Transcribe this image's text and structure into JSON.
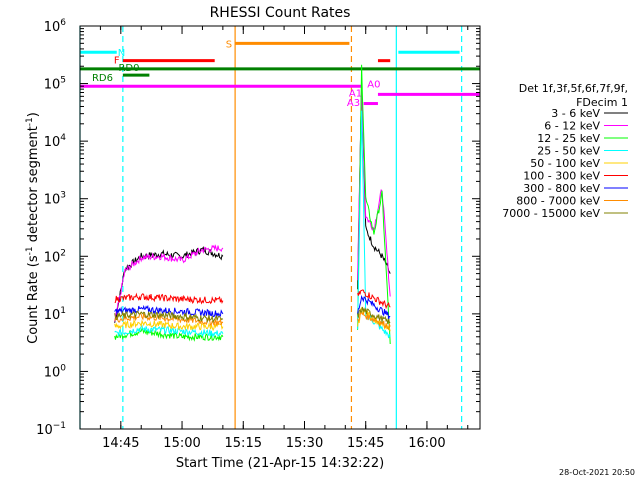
{
  "chart_data": {
    "type": "line",
    "title": "RHESSI Count Rates",
    "xlabel": "Start Time (21-Apr-15 14:32:22)",
    "ylabel_main": "Count Rate (s",
    "ylabel_sup1": "-1",
    "ylabel_mid": " detector segment",
    "ylabel_sup2": "-1",
    "ylabel_end": ")",
    "yscale": "log",
    "ylim": [
      0.1,
      1000000
    ],
    "xlim": [
      "14:35:00",
      "16:13:00"
    ],
    "xticks": [
      "14:45",
      "15:00",
      "15:15",
      "15:30",
      "15:45",
      "16:00"
    ],
    "yticks": [
      {
        "value": 0.1,
        "base": "10",
        "exp": "−1"
      },
      {
        "value": 1,
        "base": "10",
        "exp": "0"
      },
      {
        "value": 10,
        "base": "10",
        "exp": "1"
      },
      {
        "value": 100,
        "base": "10",
        "exp": "2"
      },
      {
        "value": 1000,
        "base": "10",
        "exp": "3"
      },
      {
        "value": 10000,
        "base": "10",
        "exp": "4"
      },
      {
        "value": 100000,
        "base": "10",
        "exp": "5"
      },
      {
        "value": 1000000,
        "base": "10",
        "exp": "6"
      }
    ],
    "legend_title": [
      "Det 1f,3f,5f,6f,7f,9f,",
      "FDecim 1"
    ],
    "legend_placement": "right",
    "series": [
      {
        "name": "3 - 6 keV",
        "color": "#000000",
        "segments": [
          {
            "x": [
              "14:43:30",
              "14:46:00",
              "14:50:00",
              "14:55:00",
              "15:00:00",
              "15:05:00",
              "15:10:00"
            ],
            "y": [
              7,
              60,
              100,
              110,
              100,
              130,
              100
            ]
          },
          {
            "x": [
              "15:43:00",
              "15:44:00",
              "15:45:00",
              "15:47:00",
              "15:49:00",
              "15:51:00"
            ],
            "y": [
              30,
              100000,
              300,
              150,
              100,
              50
            ]
          }
        ]
      },
      {
        "name": "6 - 12 keV",
        "color": "#ff00ff",
        "segments": [
          {
            "x": [
              "14:43:30",
              "14:46:00",
              "14:50:00",
              "14:55:00",
              "15:00:00",
              "15:05:00",
              "15:10:00"
            ],
            "y": [
              7,
              55,
              95,
              100,
              85,
              130,
              140
            ]
          },
          {
            "x": [
              "15:43:00",
              "15:44:00",
              "15:45:00",
              "15:47:00",
              "15:49:00",
              "15:51:00"
            ],
            "y": [
              40,
              90000,
              500,
              300,
              1500,
              20
            ]
          }
        ]
      },
      {
        "name": "12 - 25 keV",
        "color": "#00ff00",
        "segments": [
          {
            "x": [
              "14:43:30",
              "14:50:00",
              "15:00:00",
              "15:10:00"
            ],
            "y": [
              4,
              5,
              4,
              4
            ]
          },
          {
            "x": [
              "15:43:00",
              "15:44:00",
              "15:45:00",
              "15:47:00",
              "15:49:00",
              "15:51:00"
            ],
            "y": [
              5,
              200000,
              1000,
              250,
              1200,
              3
            ]
          }
        ]
      },
      {
        "name": "25 - 50 keV",
        "color": "#00ffff",
        "segments": [
          {
            "x": [
              "14:43:30",
              "14:50:00",
              "15:00:00",
              "15:10:00"
            ],
            "y": [
              4.5,
              5.5,
              5,
              4.5
            ]
          },
          {
            "x": [
              "15:43:00",
              "15:44:00",
              "15:45:00",
              "15:51:00"
            ],
            "y": [
              5,
              30000,
              10,
              4
            ]
          }
        ]
      },
      {
        "name": "50 - 100 keV",
        "color": "#ffd000",
        "segments": [
          {
            "x": [
              "14:43:30",
              "14:50:00",
              "15:00:00",
              "15:10:00"
            ],
            "y": [
              6,
              7,
              6,
              6
            ]
          },
          {
            "x": [
              "15:43:00",
              "15:44:00",
              "15:51:00"
            ],
            "y": [
              6,
              12,
              5
            ]
          }
        ]
      },
      {
        "name": "100 - 300 keV",
        "color": "#ff0000",
        "segments": [
          {
            "x": [
              "14:43:30",
              "14:50:00",
              "15:00:00",
              "15:10:00"
            ],
            "y": [
              18,
              20,
              18,
              17
            ]
          },
          {
            "x": [
              "15:43:00",
              "15:44:00",
              "15:51:00"
            ],
            "y": [
              20,
              25,
              13
            ]
          }
        ]
      },
      {
        "name": "300 - 800 keV",
        "color": "#0000ff",
        "segments": [
          {
            "x": [
              "14:43:30",
              "14:50:00",
              "15:00:00",
              "15:10:00"
            ],
            "y": [
              11,
              12,
              11,
              10
            ]
          },
          {
            "x": [
              "15:43:00",
              "15:44:00",
              "15:51:00"
            ],
            "y": [
              10,
              20,
              9
            ]
          }
        ]
      },
      {
        "name": "800 - 7000 keV",
        "color": "#ff8c00",
        "segments": [
          {
            "x": [
              "14:43:30",
              "14:50:00",
              "15:00:00",
              "15:10:00"
            ],
            "y": [
              8,
              9,
              8,
              7
            ]
          },
          {
            "x": [
              "15:43:00",
              "15:44:00",
              "15:51:00"
            ],
            "y": [
              8,
              10,
              6
            ]
          }
        ]
      },
      {
        "name": "7000 - 15000 keV",
        "color": "#808000",
        "segments": [
          {
            "x": [
              "14:43:30",
              "14:50:00",
              "15:00:00",
              "15:10:00"
            ],
            "y": [
              9,
              10,
              9,
              8
            ]
          },
          {
            "x": [
              "15:43:00",
              "15:44:00",
              "15:51:00"
            ],
            "y": [
              9,
              12,
              7
            ]
          }
        ]
      }
    ],
    "vertical_lines": [
      {
        "x": "14:35:00",
        "color": "#00ffff",
        "style": "solid"
      },
      {
        "x": "14:45:30",
        "color": "#00ffff",
        "style": "dashed"
      },
      {
        "x": "15:13:00",
        "color": "#ff8c00",
        "style": "solid"
      },
      {
        "x": "15:41:30",
        "color": "#ff8c00",
        "style": "dashed"
      },
      {
        "x": "15:52:30",
        "color": "#00ffff",
        "style": "solid"
      },
      {
        "x": "16:08:30",
        "color": "#00ffff",
        "style": "dashed"
      }
    ],
    "flag_bars": [
      {
        "label": "N",
        "color": "#00ffff",
        "y": 350000,
        "segments": [
          [
            "14:35:00",
            "14:44:00"
          ],
          [
            "15:53:00",
            "16:08:00"
          ]
        ],
        "label_at": "14:45:10",
        "label_y": 350000
      },
      {
        "label": "S",
        "color": "#ff8c00",
        "y": 500000,
        "segments": [
          [
            "15:13:00",
            "15:41:00"
          ]
        ],
        "label_at": "15:11:30",
        "label_y": 500000
      },
      {
        "label": "F",
        "color": "#ff0000",
        "y": 250000,
        "segments": [
          [
            "14:45:30",
            "15:08:00"
          ],
          [
            "15:48:00",
            "15:51:00"
          ]
        ],
        "label_at": "14:44:00",
        "label_y": 260000
      },
      {
        "label": "RD0",
        "color": "#008000",
        "y": 180000,
        "segments": [
          [
            "14:35:00",
            "16:13:00"
          ]
        ],
        "label_at": "14:47:00",
        "label_y": 195000
      },
      {
        "label": "RD6",
        "color": "#008000",
        "y": 140000,
        "segments": [
          [
            "14:45:30",
            "14:52:00"
          ]
        ],
        "label_at": "14:40:30",
        "label_y": 130000
      },
      {
        "label": "A0",
        "color": "#ff00ff",
        "y": 90000,
        "segments": [
          [
            "14:35:00",
            "15:44:00"
          ]
        ],
        "label_at": "15:47:00",
        "label_y": 100000
      },
      {
        "label": "A1",
        "color": "#ff00ff",
        "y": 65000,
        "segments": [
          [
            "15:48:00",
            "16:13:00"
          ]
        ],
        "label_at": "15:42:30",
        "label_y": 70000
      },
      {
        "label": "A3",
        "color": "#ff00ff",
        "y": 45000,
        "segments": [
          [
            "15:44:30",
            "15:48:00"
          ]
        ],
        "label_at": "15:42:00",
        "label_y": 48000
      }
    ],
    "timestamp": "28-Oct-2021 20:50"
  }
}
